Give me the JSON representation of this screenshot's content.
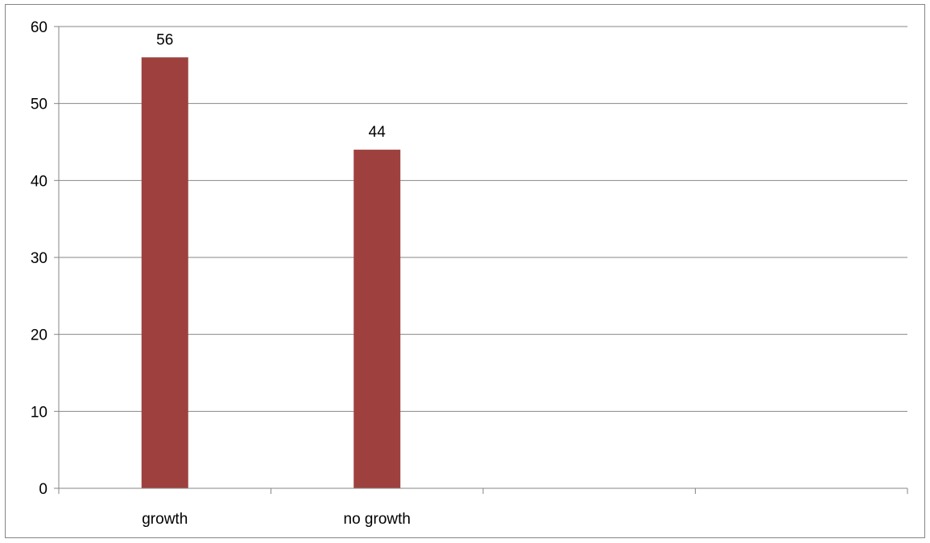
{
  "chart_data": {
    "type": "bar",
    "categories": [
      "growth",
      "no growth",
      "",
      ""
    ],
    "values": [
      56,
      44,
      null,
      null
    ],
    "data_labels": [
      "56",
      "44",
      "",
      ""
    ],
    "ylim": [
      0,
      60
    ],
    "yticks": [
      0,
      10,
      20,
      30,
      40,
      50,
      60
    ],
    "grid": true,
    "legend": "none",
    "bar_color": "#9E413E",
    "grid_color": "#868686"
  }
}
